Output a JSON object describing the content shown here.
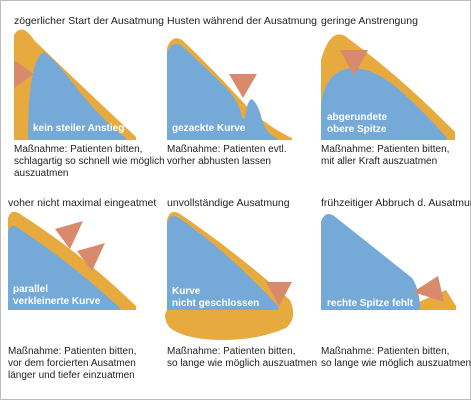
{
  "colors": {
    "orange": "#e7aa3f",
    "blue": "#74a9d8",
    "marker": "#d98a6c",
    "frame": "#bdbdbd",
    "text": "#222222"
  },
  "icons": {
    "marker": "triangle-marker-icon"
  },
  "panels": [
    {
      "title": "zögerlicher Start der Ausatmung",
      "label": [
        "kein steiler Anstieg"
      ],
      "note": [
        "Maßnahme: Patienten bitten,",
        "schlagartig so schnell wie möglich",
        "auszuatmen"
      ]
    },
    {
      "title": "Husten während der Ausatmung",
      "label": [
        "gezackte Kurve"
      ],
      "note": [
        "Maßnahme: Patienten evtl.",
        "vorher abhusten lassen"
      ]
    },
    {
      "title": "geringe Anstrengung",
      "label": [
        "abgerundete",
        "obere Spitze"
      ],
      "note": [
        "Maßnahme: Patienten bitten,",
        "mit aller Kraft auszuatmen"
      ]
    },
    {
      "title": "voher nicht maximal eingeatmet",
      "label": [
        "parallel",
        "verkleinerte Kurve"
      ],
      "note": [
        "Maßnahme: Patienten bitten,",
        "vor dem forcierten Ausatmen",
        "länger und tiefer einzuatmen"
      ]
    },
    {
      "title": "unvollständige Ausatmung",
      "label": [
        "Kurve",
        "nicht geschlossen"
      ],
      "note": [
        "Maßnahme: Patienten bitten,",
        "so lange wie möglich auszuatmen"
      ]
    },
    {
      "title": "frühzeitiger Abbruch d. Ausatmung",
      "label": [
        "rechte Spitze fehlt"
      ],
      "note": [
        "Maßnahme: Patienten bitten,",
        "so lange wie möglich auszuatmen"
      ]
    }
  ]
}
